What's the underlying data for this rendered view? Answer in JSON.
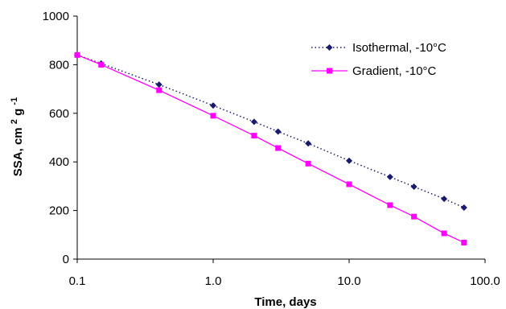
{
  "chart_data": {
    "type": "line",
    "xlabel": "Time, days",
    "ylabel_main": "SSA, cm",
    "ylabel_sup1": "2",
    "ylabel_mid": " g",
    "ylabel_sup2": "-1",
    "xscale": "log",
    "xlim": [
      0.1,
      100
    ],
    "ylim": [
      0,
      1000
    ],
    "x_tick_values": [
      0.1,
      1,
      10,
      100
    ],
    "x_tick_labels": [
      "0.1",
      "1.0",
      "10.0",
      "100.0"
    ],
    "y_tick_values": [
      0,
      200,
      400,
      600,
      800,
      1000
    ],
    "y_tick_labels": [
      "0",
      "200",
      "400",
      "600",
      "800",
      "1000"
    ],
    "grid": false,
    "legend_position": "top-right",
    "series": [
      {
        "name": "Isothermal, -10°C",
        "color": "#1a1a6e",
        "line_style": "dotted",
        "marker": "diamond",
        "x": [
          0.1,
          0.15,
          0.4,
          1,
          2,
          3,
          5,
          10,
          20,
          30,
          50,
          70
        ],
        "y": [
          840,
          805,
          718,
          632,
          565,
          525,
          476,
          405,
          338,
          298,
          248,
          212
        ]
      },
      {
        "name": "Gradient, -10°C",
        "color": "#ff00ff",
        "line_style": "solid",
        "marker": "square",
        "x": [
          0.1,
          0.15,
          0.4,
          1,
          2,
          3,
          5,
          10,
          20,
          30,
          50,
          70
        ],
        "y": [
          840,
          800,
          695,
          590,
          508,
          457,
          393,
          308,
          222,
          175,
          106,
          68
        ]
      }
    ]
  }
}
